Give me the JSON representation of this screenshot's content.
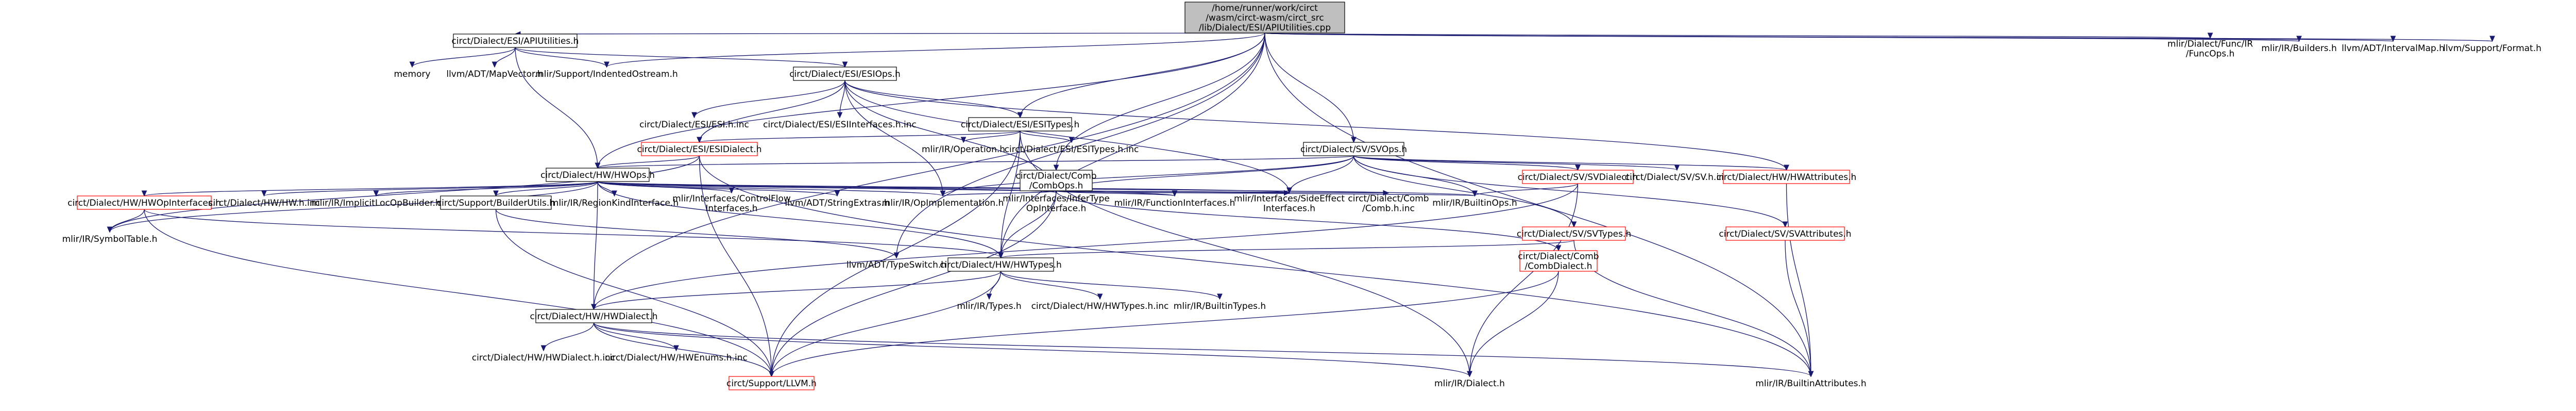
{
  "nodes": [
    {
      "id": "root",
      "lines": [
        "/home/runner/work/circt",
        "/wasm/circt-wasm/circt_src",
        "/lib/Dialect/ESI/APIUtilities.cpp"
      ],
      "style": "root"
    },
    {
      "id": "apiutil_h",
      "lines": [
        "circt/Dialect/ESI/APIUtilities.h"
      ],
      "style": "doc"
    },
    {
      "id": "memory",
      "lines": [
        "memory"
      ],
      "style": "ext"
    },
    {
      "id": "mapvector",
      "lines": [
        "llvm/ADT/MapVector.h"
      ],
      "style": "ext"
    },
    {
      "id": "indented",
      "lines": [
        "mlir/Support/IndentedOstream.h"
      ],
      "style": "ext"
    },
    {
      "id": "esiops_h",
      "lines": [
        "circt/Dialect/ESI/ESIOps.h"
      ],
      "style": "doc"
    },
    {
      "id": "esih_inc",
      "lines": [
        "circt/Dialect/ESI/ESI.h.inc"
      ],
      "style": "ext"
    },
    {
      "id": "esiiface_inc",
      "lines": [
        "circt/Dialect/ESI/ESIInterfaces.h.inc"
      ],
      "style": "ext"
    },
    {
      "id": "esitypes_h",
      "lines": [
        "circt/Dialect/ESI/ESITypes.h"
      ],
      "style": "doc"
    },
    {
      "id": "esidialect_h",
      "lines": [
        "circt/Dialect/ESI/ESIDialect.h"
      ],
      "style": "trunc"
    },
    {
      "id": "operation_h",
      "lines": [
        "mlir/IR/Operation.h"
      ],
      "style": "ext"
    },
    {
      "id": "esitypes_inc",
      "lines": [
        "circt/Dialect/ESI/ESITypes.h.inc"
      ],
      "style": "ext"
    },
    {
      "id": "svops_h",
      "lines": [
        "circt/Dialect/SV/SVOps.h"
      ],
      "style": "doc"
    },
    {
      "id": "hwops_h",
      "lines": [
        "circt/Dialect/HW/HWOps.h"
      ],
      "style": "doc"
    },
    {
      "id": "hwopiface",
      "lines": [
        "circt/Dialect/HW/HWOpInterfaces.h"
      ],
      "style": "trunc"
    },
    {
      "id": "hwhinc",
      "lines": [
        "circt/Dialect/HW/HW.h.inc"
      ],
      "style": "ext"
    },
    {
      "id": "implicitloc",
      "lines": [
        "mlir/IR/ImplicitLocOpBuilder.h"
      ],
      "style": "ext"
    },
    {
      "id": "builderutils",
      "lines": [
        "circt/Support/BuilderUtils.h"
      ],
      "style": "doc"
    },
    {
      "id": "regionkind",
      "lines": [
        "mlir/IR/RegionKindInterface.h"
      ],
      "style": "ext"
    },
    {
      "id": "controlflow",
      "lines": [
        "mlir/Interfaces/ControlFlow",
        "Interfaces.h"
      ],
      "style": "ext"
    },
    {
      "id": "stringextras",
      "lines": [
        "llvm/ADT/StringExtras.h"
      ],
      "style": "ext"
    },
    {
      "id": "symboltable",
      "lines": [
        "mlir/IR/SymbolTable.h"
      ],
      "style": "ext"
    },
    {
      "id": "opimpl",
      "lines": [
        "mlir/IR/OpImplementation.h"
      ],
      "style": "ext"
    },
    {
      "id": "infertype",
      "lines": [
        "mlir/Interfaces/InferType",
        "OpInterface.h"
      ],
      "style": "ext"
    },
    {
      "id": "funciface",
      "lines": [
        "mlir/IR/FunctionInterfaces.h"
      ],
      "style": "ext"
    },
    {
      "id": "sideeffect",
      "lines": [
        "mlir/Interfaces/SideEffect",
        "Interfaces.h"
      ],
      "style": "ext"
    },
    {
      "id": "combops_h",
      "lines": [
        "circt/Dialect/Comb",
        "/CombOps.h"
      ],
      "style": "doc"
    },
    {
      "id": "combinc",
      "lines": [
        "circt/Dialect/Comb",
        "/Comb.h.inc"
      ],
      "style": "ext"
    },
    {
      "id": "builtinops",
      "lines": [
        "mlir/IR/BuiltinOps.h"
      ],
      "style": "ext"
    },
    {
      "id": "svdialect_h",
      "lines": [
        "circt/Dialect/SV/SVDialect.h"
      ],
      "style": "trunc"
    },
    {
      "id": "svhinc",
      "lines": [
        "circt/Dialect/SV/SV.h.inc"
      ],
      "style": "ext"
    },
    {
      "id": "hwattr_h",
      "lines": [
        "circt/Dialect/HW/HWAttributes.h"
      ],
      "style": "trunc"
    },
    {
      "id": "svtypes_h",
      "lines": [
        "circt/Dialect/SV/SVTypes.h"
      ],
      "style": "trunc"
    },
    {
      "id": "svattr_h",
      "lines": [
        "circt/Dialect/SV/SVAttributes.h"
      ],
      "style": "trunc"
    },
    {
      "id": "combdialect_h",
      "lines": [
        "circt/Dialect/Comb",
        "/CombDialect.h"
      ],
      "style": "trunc"
    },
    {
      "id": "typeswitch",
      "lines": [
        "llvm/ADT/TypeSwitch.h"
      ],
      "style": "ext"
    },
    {
      "id": "hwtypes_h",
      "lines": [
        "circt/Dialect/HW/HWTypes.h"
      ],
      "style": "doc"
    },
    {
      "id": "irtypes",
      "lines": [
        "mlir/IR/Types.h"
      ],
      "style": "ext"
    },
    {
      "id": "hwtypesinc",
      "lines": [
        "circt/Dialect/HW/HWTypes.h.inc"
      ],
      "style": "ext"
    },
    {
      "id": "builtintypes",
      "lines": [
        "mlir/IR/BuiltinTypes.h"
      ],
      "style": "ext"
    },
    {
      "id": "hwdialect_h",
      "lines": [
        "circt/Dialect/HW/HWDialect.h"
      ],
      "style": "doc"
    },
    {
      "id": "hwdialectinc",
      "lines": [
        "circt/Dialect/HW/HWDialect.h.inc"
      ],
      "style": "ext"
    },
    {
      "id": "hwenumsinc",
      "lines": [
        "circt/Dialect/HW/HWEnums.h.inc"
      ],
      "style": "ext"
    },
    {
      "id": "llvm_h",
      "lines": [
        "circt/Support/LLVM.h"
      ],
      "style": "trunc"
    },
    {
      "id": "irdialect",
      "lines": [
        "mlir/IR/Dialect.h"
      ],
      "style": "ext"
    },
    {
      "id": "builtinattr",
      "lines": [
        "mlir/IR/BuiltinAttributes.h"
      ],
      "style": "ext"
    },
    {
      "id": "funcops",
      "lines": [
        "mlir/Dialect/Func/IR",
        "/FuncOps.h"
      ],
      "style": "ext"
    },
    {
      "id": "irbuilders",
      "lines": [
        "mlir/IR/Builders.h"
      ],
      "style": "ext"
    },
    {
      "id": "intervalmap",
      "lines": [
        "llvm/ADT/IntervalMap.h"
      ],
      "style": "ext"
    },
    {
      "id": "format",
      "lines": [
        "llvm/Support/Format.h"
      ],
      "style": "ext"
    }
  ],
  "edges": [
    [
      "root",
      "apiutil_h"
    ],
    [
      "root",
      "indented"
    ],
    [
      "root",
      "esitypes_h"
    ],
    [
      "root",
      "svops_h"
    ],
    [
      "root",
      "hwops_h"
    ],
    [
      "root",
      "combops_h"
    ],
    [
      "root",
      "typeswitch"
    ],
    [
      "root",
      "hwdialect_h"
    ],
    [
      "root",
      "funcops"
    ],
    [
      "root",
      "irbuilders"
    ],
    [
      "root",
      "intervalmap"
    ],
    [
      "root",
      "format"
    ],
    [
      "root",
      "hwtypes_h"
    ],
    [
      "root",
      "builtinattr"
    ],
    [
      "apiutil_h",
      "memory"
    ],
    [
      "apiutil_h",
      "mapvector"
    ],
    [
      "apiutil_h",
      "indented"
    ],
    [
      "apiutil_h",
      "esiops_h"
    ],
    [
      "apiutil_h",
      "hwops_h"
    ],
    [
      "esiops_h",
      "esih_inc"
    ],
    [
      "esiops_h",
      "esiiface_inc"
    ],
    [
      "esiops_h",
      "esitypes_h"
    ],
    [
      "esiops_h",
      "esidialect_h"
    ],
    [
      "esiops_h",
      "opimpl"
    ],
    [
      "esiops_h",
      "infertype"
    ],
    [
      "esiops_h",
      "sideeffect"
    ],
    [
      "esiops_h",
      "hwattr_h"
    ],
    [
      "esitypes_h",
      "operation_h"
    ],
    [
      "esitypes_h",
      "esitypes_inc"
    ],
    [
      "esitypes_h",
      "esidialect_h"
    ],
    [
      "esitypes_h",
      "hwtypes_h"
    ],
    [
      "esitypes_h",
      "llvm_h"
    ],
    [
      "esitypes_h",
      "irdialect"
    ],
    [
      "esidialect_h",
      "hwops_h"
    ],
    [
      "esidialect_h",
      "builtinattr"
    ],
    [
      "esidialect_h",
      "llvm_h"
    ],
    [
      "esidialect_h",
      "symboltable"
    ],
    [
      "svops_h",
      "hwops_h"
    ],
    [
      "svops_h",
      "svdialect_h"
    ],
    [
      "svops_h",
      "svhinc"
    ],
    [
      "svops_h",
      "hwattr_h"
    ],
    [
      "svops_h",
      "svtypes_h"
    ],
    [
      "svops_h",
      "svattr_h"
    ],
    [
      "svops_h",
      "opimpl"
    ],
    [
      "svops_h",
      "sideeffect"
    ],
    [
      "svops_h",
      "infertype"
    ],
    [
      "svops_h",
      "builtinops"
    ],
    [
      "hwops_h",
      "hwopiface"
    ],
    [
      "hwops_h",
      "hwhinc"
    ],
    [
      "hwops_h",
      "implicitloc"
    ],
    [
      "hwops_h",
      "builderutils"
    ],
    [
      "hwops_h",
      "regionkind"
    ],
    [
      "hwops_h",
      "controlflow"
    ],
    [
      "hwops_h",
      "stringextras"
    ],
    [
      "hwops_h",
      "symboltable"
    ],
    [
      "hwops_h",
      "opimpl"
    ],
    [
      "hwops_h",
      "infertype"
    ],
    [
      "hwops_h",
      "funciface"
    ],
    [
      "hwops_h",
      "sideeffect"
    ],
    [
      "hwops_h",
      "hwtypes_h"
    ],
    [
      "hwops_h",
      "hwdialect_h"
    ],
    [
      "hwops_h",
      "builtinops"
    ],
    [
      "hwopiface",
      "symboltable"
    ],
    [
      "hwopiface",
      "hwtypes_h"
    ],
    [
      "hwopiface",
      "llvm_h"
    ],
    [
      "builderutils",
      "typeswitch"
    ],
    [
      "builderutils",
      "llvm_h"
    ],
    [
      "combops_h",
      "combinc"
    ],
    [
      "combops_h",
      "hwtypes_h"
    ],
    [
      "combops_h",
      "combdialect_h"
    ],
    [
      "combops_h",
      "opimpl"
    ],
    [
      "combops_h",
      "infertype"
    ],
    [
      "combops_h",
      "funciface"
    ],
    [
      "combops_h",
      "sideeffect"
    ],
    [
      "combops_h",
      "builtinops"
    ],
    [
      "combops_h",
      "llvm_h"
    ],
    [
      "svdialect_h",
      "hwdialect_h"
    ],
    [
      "svdialect_h",
      "irdialect"
    ],
    [
      "svdialect_h",
      "builtinops"
    ],
    [
      "svtypes_h",
      "hwtypes_h"
    ],
    [
      "svtypes_h",
      "builtinattr"
    ],
    [
      "svattr_h",
      "builtinattr"
    ],
    [
      "hwattr_h",
      "builtinattr"
    ],
    [
      "combdialect_h",
      "irdialect"
    ],
    [
      "combdialect_h",
      "llvm_h"
    ],
    [
      "hwtypes_h",
      "irtypes"
    ],
    [
      "hwtypes_h",
      "hwtypesinc"
    ],
    [
      "hwtypes_h",
      "builtintypes"
    ],
    [
      "hwtypes_h",
      "hwdialect_h"
    ],
    [
      "hwtypes_h",
      "llvm_h"
    ],
    [
      "hwdialect_h",
      "hwdialectinc"
    ],
    [
      "hwdialect_h",
      "hwenumsinc"
    ],
    [
      "hwdialect_h",
      "llvm_h"
    ],
    [
      "hwdialect_h",
      "irdialect"
    ],
    [
      "hwdialect_h",
      "builtinattr"
    ]
  ]
}
